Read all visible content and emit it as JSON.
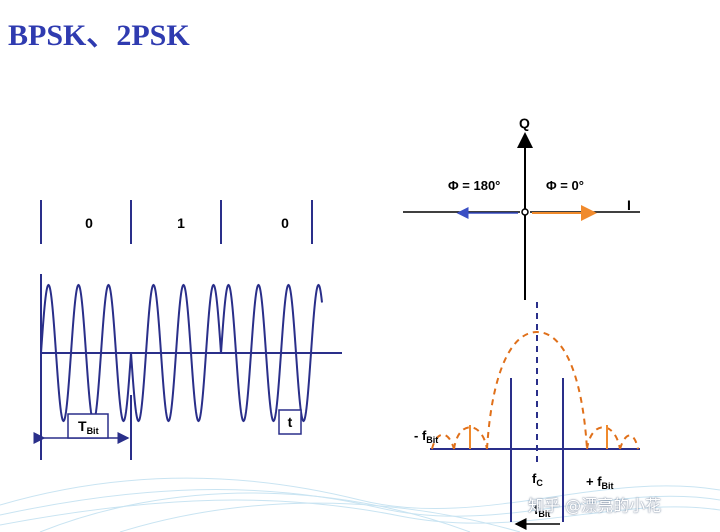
{
  "title": "BPSK、2PSK",
  "waveform": {
    "bits": [
      "0",
      "1",
      "0"
    ],
    "period_label": "T",
    "period_sub": "Bit",
    "time_label": "t"
  },
  "constellation": {
    "q_axis": "Q",
    "i_axis": "I",
    "phase_180": "Φ = 180°",
    "phase_0": "Φ = 0°",
    "colors": {
      "phase_180": "#3a4fc4",
      "phase_0": "#f08a2c"
    }
  },
  "spectrum": {
    "neg_label": "- f",
    "neg_sub": "Bit",
    "center_label": "f",
    "center_sub": "C",
    "pos_label": "+ f",
    "pos_sub": "Bit",
    "width_label": "f",
    "width_sub": "Bit",
    "lobe_color": "#e0701a"
  },
  "watermark": "知乎 @漂亮的小花"
}
